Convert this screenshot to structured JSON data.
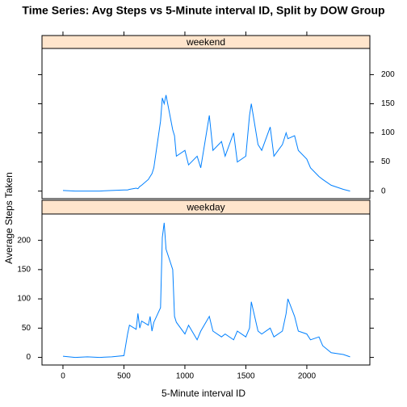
{
  "figure": {
    "title": "Time Series: Avg Steps vs 5-Minute interval ID, Split by DOW Group",
    "x_label": "5-Minute interval ID",
    "y_label": "Average Steps Taken"
  },
  "chart_data": [
    {
      "type": "line",
      "title": "weekend",
      "color": "#0080ff",
      "ytick_side": "right",
      "xtick_side": "top",
      "xlim": [
        -172,
        2517
      ],
      "xticks": [
        0,
        500,
        1000,
        1500,
        2000
      ],
      "ylim": [
        -13,
        245
      ],
      "yticks": [
        0,
        50,
        100,
        150,
        200
      ],
      "x": [
        0,
        100,
        200,
        300,
        400,
        500,
        530,
        545,
        600,
        615,
        630,
        645,
        700,
        715,
        730,
        745,
        800,
        815,
        830,
        845,
        900,
        915,
        930,
        1000,
        1030,
        1100,
        1130,
        1200,
        1230,
        1300,
        1330,
        1400,
        1430,
        1500,
        1530,
        1545,
        1600,
        1630,
        1700,
        1730,
        1800,
        1830,
        1845,
        1900,
        1930,
        2000,
        2030,
        2100,
        2130,
        2200,
        2300,
        2355
      ],
      "values": [
        1,
        0,
        0,
        0,
        1,
        2,
        2,
        3,
        5,
        4,
        8,
        10,
        20,
        25,
        30,
        40,
        120,
        160,
        150,
        165,
        105,
        95,
        60,
        70,
        45,
        60,
        40,
        130,
        70,
        85,
        60,
        100,
        50,
        60,
        130,
        150,
        80,
        70,
        110,
        60,
        80,
        100,
        90,
        95,
        70,
        55,
        40,
        25,
        20,
        10,
        3,
        0
      ]
    },
    {
      "type": "line",
      "title": "weekday",
      "color": "#0080ff",
      "ytick_side": "left",
      "xtick_side": "bottom",
      "xlim": [
        -172,
        2517
      ],
      "xticks": [
        0,
        500,
        1000,
        1500,
        2000
      ],
      "ylim": [
        -13,
        245
      ],
      "yticks": [
        0,
        50,
        100,
        150,
        200
      ],
      "x": [
        0,
        100,
        200,
        300,
        400,
        500,
        530,
        545,
        600,
        615,
        630,
        645,
        700,
        715,
        730,
        745,
        800,
        815,
        830,
        845,
        900,
        915,
        930,
        1000,
        1030,
        1100,
        1130,
        1200,
        1230,
        1300,
        1330,
        1400,
        1430,
        1500,
        1530,
        1545,
        1600,
        1630,
        1700,
        1730,
        1800,
        1830,
        1845,
        1900,
        1930,
        2000,
        2030,
        2100,
        2130,
        2200,
        2300,
        2355
      ],
      "values": [
        2,
        0,
        1,
        0,
        1,
        3,
        40,
        55,
        48,
        75,
        50,
        62,
        55,
        70,
        45,
        60,
        85,
        205,
        230,
        185,
        150,
        70,
        60,
        40,
        55,
        30,
        45,
        70,
        45,
        35,
        40,
        30,
        45,
        35,
        50,
        95,
        45,
        40,
        50,
        35,
        45,
        75,
        100,
        70,
        45,
        40,
        30,
        35,
        20,
        8,
        5,
        1
      ]
    }
  ]
}
